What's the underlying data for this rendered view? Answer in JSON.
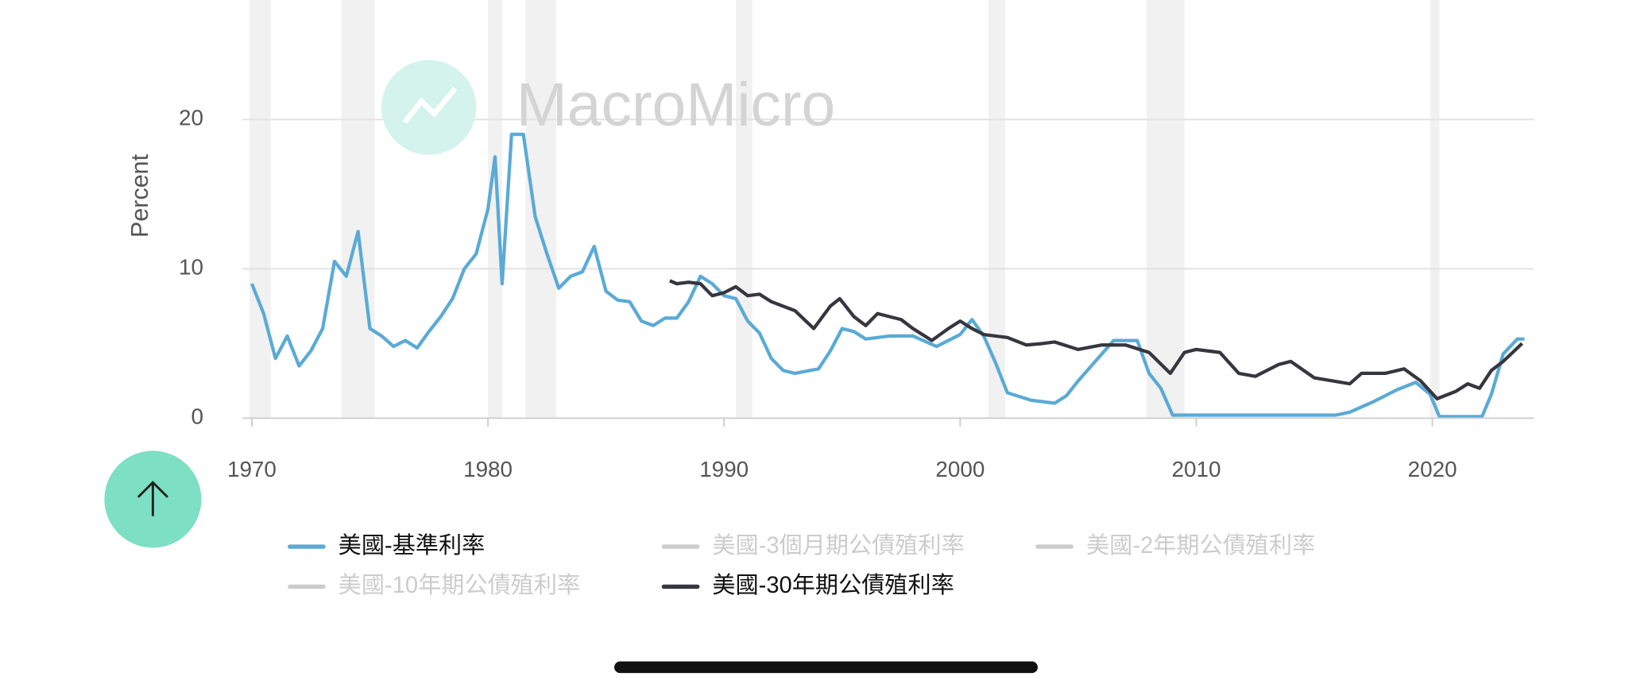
{
  "chart_data": {
    "type": "line",
    "y_label": "Percent",
    "watermark": "MacroMicro",
    "xlim": [
      1969.6,
      2024.3
    ],
    "ylim": [
      0,
      28
    ],
    "xticks": [
      1970,
      1980,
      1990,
      2000,
      2010,
      2020
    ],
    "yticks": [
      0,
      10,
      20
    ],
    "grid": true,
    "recessions": [
      [
        1969.9,
        1970.8
      ],
      [
        1973.8,
        1975.2
      ],
      [
        1980.0,
        1980.6
      ],
      [
        1981.6,
        1982.9
      ],
      [
        1990.5,
        1991.2
      ],
      [
        2001.2,
        2001.9
      ],
      [
        2007.9,
        2009.5
      ],
      [
        2019.9,
        2020.3
      ]
    ],
    "recession_color": "#f1f1f1",
    "series": [
      {
        "name": "美國-基準利率",
        "color": "#5aaad6",
        "visible": true,
        "x": [
          1970,
          1970.5,
          1971,
          1971.5,
          1972,
          1972.5,
          1973,
          1973.5,
          1974,
          1974.5,
          1975,
          1975.5,
          1976,
          1976.5,
          1977,
          1977.5,
          1978,
          1978.5,
          1979,
          1979.5,
          1980,
          1980.3,
          1980.6,
          1981,
          1981.5,
          1982,
          1982.5,
          1983,
          1983.5,
          1984,
          1984.5,
          1985,
          1985.5,
          1986,
          1986.5,
          1987,
          1987.5,
          1988,
          1988.5,
          1989,
          1989.5,
          1990,
          1990.5,
          1991,
          1991.5,
          1992,
          1992.5,
          1993,
          1994,
          1994.5,
          1995,
          1995.5,
          1996,
          1997,
          1998,
          1999,
          1999.5,
          2000,
          2000.5,
          2001,
          2001.5,
          2002,
          2003,
          2004,
          2004.5,
          2005,
          2006,
          2006.5,
          2007.5,
          2008,
          2008.5,
          2009,
          2015.9,
          2016.5,
          2017.5,
          2018.5,
          2019.3,
          2019.9,
          2020.3,
          2022.1,
          2022.5,
          2023,
          2023.6,
          2023.9
        ],
        "values": [
          9.0,
          7.0,
          4.0,
          5.5,
          3.5,
          4.5,
          6.0,
          10.5,
          9.5,
          12.5,
          6.0,
          5.5,
          4.8,
          5.2,
          4.7,
          5.8,
          6.8,
          8.0,
          10.0,
          11.0,
          14.0,
          17.5,
          9.0,
          19.0,
          19.0,
          13.5,
          11.0,
          8.7,
          9.5,
          9.8,
          11.5,
          8.5,
          7.9,
          7.8,
          6.5,
          6.2,
          6.7,
          6.7,
          7.8,
          9.5,
          9.0,
          8.2,
          8.0,
          6.5,
          5.7,
          4.0,
          3.2,
          3.0,
          3.3,
          4.5,
          6.0,
          5.8,
          5.3,
          5.5,
          5.5,
          4.8,
          5.2,
          5.6,
          6.6,
          5.5,
          3.7,
          1.7,
          1.2,
          1.0,
          1.5,
          2.5,
          4.3,
          5.2,
          5.2,
          3.0,
          2.0,
          0.2,
          0.2,
          0.4,
          1.1,
          1.9,
          2.4,
          1.6,
          0.1,
          0.1,
          1.6,
          4.3,
          5.3,
          5.3
        ]
      },
      {
        "name": "美國-3個月期公債殖利率",
        "color": "#cccccc",
        "visible": false
      },
      {
        "name": "美國-2年期公債殖利率",
        "color": "#cccccc",
        "visible": false
      },
      {
        "name": "美國-10年期公債殖利率",
        "color": "#cccccc",
        "visible": false
      },
      {
        "name": "美國-30年期公債殖利率",
        "color": "#36363f",
        "visible": true,
        "x": [
          1987.7,
          1988,
          1988.5,
          1989,
          1989.5,
          1990,
          1990.5,
          1991,
          1991.5,
          1992,
          1992.5,
          1993,
          1993.8,
          1994.5,
          1994.9,
          1995.5,
          1996,
          1996.5,
          1997,
          1997.5,
          1998,
          1998.8,
          1999.5,
          2000,
          2000.5,
          2001,
          2002,
          2002.8,
          2003.5,
          2004,
          2005,
          2006,
          2007,
          2008,
          2008.9,
          2009.5,
          2010,
          2011,
          2011.8,
          2012.5,
          2013.5,
          2014,
          2015,
          2016.5,
          2017,
          2018,
          2018.8,
          2019.5,
          2020.2,
          2021,
          2021.5,
          2022,
          2022.5,
          2023,
          2023.8
        ],
        "values": [
          9.2,
          9.0,
          9.1,
          9.0,
          8.2,
          8.4,
          8.8,
          8.2,
          8.3,
          7.8,
          7.5,
          7.2,
          6.0,
          7.5,
          8.0,
          6.8,
          6.2,
          7.0,
          6.8,
          6.6,
          6.0,
          5.2,
          6.0,
          6.5,
          6.0,
          5.6,
          5.4,
          4.9,
          5.0,
          5.1,
          4.6,
          4.9,
          4.9,
          4.4,
          3.0,
          4.4,
          4.6,
          4.4,
          3.0,
          2.8,
          3.6,
          3.8,
          2.7,
          2.3,
          3.0,
          3.0,
          3.3,
          2.5,
          1.3,
          1.8,
          2.3,
          2.0,
          3.2,
          3.8,
          5.0
        ]
      }
    ]
  }
}
